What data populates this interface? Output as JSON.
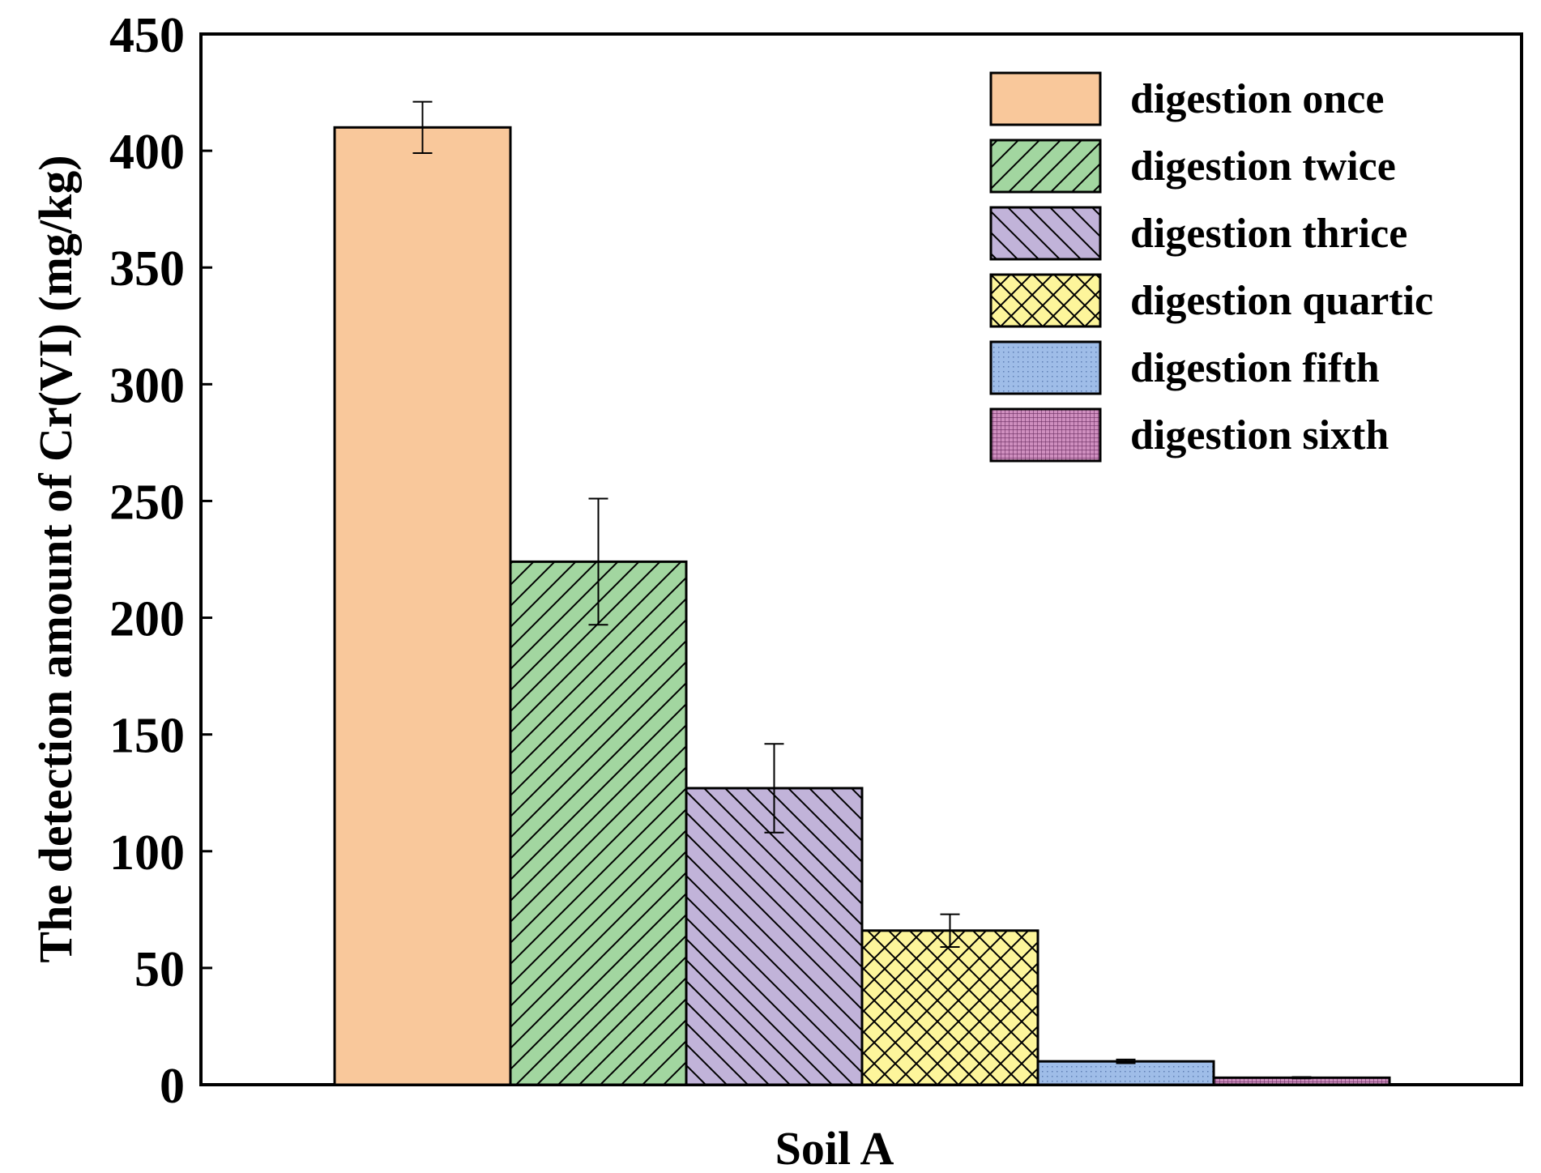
{
  "chart_data": {
    "type": "bar",
    "categories": [
      "Soil A"
    ],
    "xlabel": "Soil A",
    "ylabel": "The detection amount of Cr(VI) (mg/kg)",
    "ylim": [
      0,
      450
    ],
    "yticks": [
      0,
      50,
      100,
      150,
      200,
      250,
      300,
      350,
      400,
      450
    ],
    "legend_position": "top-right",
    "grid": false,
    "series": [
      {
        "name": "digestion once",
        "value": 410,
        "error": 11,
        "color": "#f9c89b",
        "pattern": "solid"
      },
      {
        "name": "digestion twice",
        "value": 224,
        "error": 27,
        "color": "#a2d6a0",
        "pattern": "forward-diagonal"
      },
      {
        "name": "digestion thrice",
        "value": 127,
        "error": 19,
        "color": "#c1b3d9",
        "pattern": "backward-diagonal"
      },
      {
        "name": "digestion quartic",
        "value": 66,
        "error": 7,
        "color": "#fdf59b",
        "pattern": "crosshatch"
      },
      {
        "name": "digestion fifth",
        "value": 10,
        "error": 0.8,
        "color": "#9fbde8",
        "pattern": "fine-dots"
      },
      {
        "name": "digestion sixth",
        "value": 3,
        "error": 0.3,
        "color": "#cf8fbf",
        "pattern": "dense-grid"
      }
    ]
  }
}
